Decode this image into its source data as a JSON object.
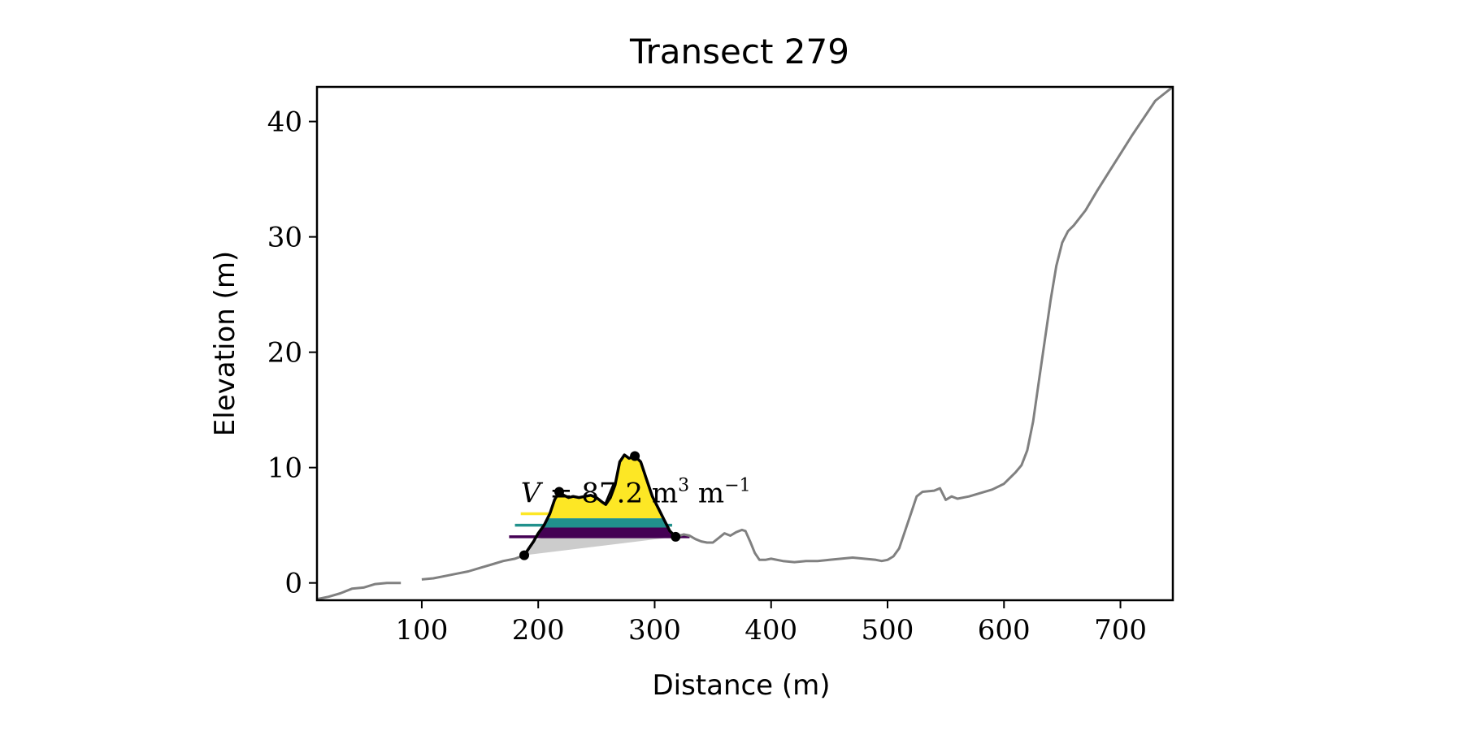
{
  "chart_data": {
    "type": "line",
    "title": "Transect 279",
    "xlabel": "Distance (m)",
    "ylabel": "Elevation (m)",
    "xlim": [
      10,
      745
    ],
    "ylim": [
      -1.5,
      43
    ],
    "xticks": [
      100,
      200,
      300,
      400,
      500,
      600,
      700
    ],
    "yticks": [
      0,
      10,
      20,
      30,
      40
    ],
    "grid": false,
    "legend": "none",
    "colors": {
      "profile": "#808080",
      "dune": "#000000",
      "fill_yellow": "#fde725",
      "fill_green": "#21918c",
      "fill_purple": "#440154",
      "fill_gray": "#cccccc"
    },
    "annotation": {
      "text_italic": "V",
      "text_middle": " = 87.2 m",
      "sup1": "3",
      "text_unit2": " m",
      "sup2": "−1",
      "x": 185,
      "y": 7.0
    },
    "profile_segments": [
      [
        [
          10,
          -1.4
        ],
        [
          20,
          -1.2
        ],
        [
          30,
          -0.9
        ],
        [
          40,
          -0.5
        ],
        [
          50,
          -0.4
        ],
        [
          60,
          -0.1
        ],
        [
          70,
          0.0
        ],
        [
          75,
          0.0
        ],
        [
          82,
          0.0
        ]
      ],
      [
        [
          100,
          0.3
        ],
        [
          110,
          0.4
        ],
        [
          120,
          0.6
        ],
        [
          130,
          0.8
        ],
        [
          140,
          1.0
        ],
        [
          150,
          1.3
        ],
        [
          160,
          1.6
        ],
        [
          170,
          1.9
        ],
        [
          180,
          2.1
        ],
        [
          188,
          2.4
        ]
      ],
      [
        [
          318,
          4.0
        ],
        [
          325,
          4.2
        ],
        [
          330,
          4.1
        ],
        [
          335,
          3.8
        ],
        [
          340,
          3.6
        ],
        [
          345,
          3.5
        ],
        [
          350,
          3.5
        ],
        [
          355,
          3.9
        ],
        [
          360,
          4.3
        ],
        [
          365,
          4.1
        ],
        [
          370,
          4.4
        ],
        [
          375,
          4.6
        ],
        [
          378,
          4.5
        ],
        [
          382,
          3.6
        ],
        [
          386,
          2.6
        ],
        [
          390,
          2.0
        ],
        [
          395,
          2.0
        ],
        [
          400,
          2.1
        ],
        [
          410,
          1.9
        ],
        [
          420,
          1.8
        ],
        [
          430,
          1.9
        ],
        [
          440,
          1.9
        ],
        [
          450,
          2.0
        ],
        [
          460,
          2.1
        ],
        [
          470,
          2.2
        ],
        [
          480,
          2.1
        ],
        [
          490,
          2.0
        ],
        [
          495,
          1.9
        ],
        [
          500,
          2.0
        ],
        [
          505,
          2.3
        ],
        [
          510,
          3.0
        ],
        [
          515,
          4.5
        ],
        [
          520,
          6.0
        ],
        [
          525,
          7.5
        ],
        [
          530,
          7.9
        ],
        [
          540,
          8.0
        ],
        [
          545,
          8.2
        ],
        [
          550,
          7.2
        ],
        [
          555,
          7.5
        ],
        [
          560,
          7.3
        ],
        [
          570,
          7.5
        ],
        [
          580,
          7.8
        ],
        [
          590,
          8.1
        ],
        [
          600,
          8.6
        ],
        [
          610,
          9.6
        ],
        [
          615,
          10.2
        ],
        [
          620,
          11.5
        ],
        [
          625,
          14.0
        ],
        [
          630,
          17.5
        ],
        [
          635,
          21.0
        ],
        [
          640,
          24.5
        ],
        [
          645,
          27.5
        ],
        [
          650,
          29.5
        ],
        [
          655,
          30.5
        ],
        [
          660,
          31.0
        ],
        [
          670,
          32.3
        ],
        [
          680,
          34.0
        ],
        [
          690,
          35.6
        ],
        [
          700,
          37.2
        ],
        [
          710,
          38.8
        ],
        [
          720,
          40.3
        ],
        [
          730,
          41.8
        ],
        [
          745,
          43.0
        ]
      ]
    ],
    "dune_profile": [
      [
        188,
        2.4
      ],
      [
        192,
        3.0
      ],
      [
        196,
        3.6
      ],
      [
        200,
        4.3
      ],
      [
        205,
        5.0
      ],
      [
        210,
        6.0
      ],
      [
        214,
        7.2
      ],
      [
        218,
        7.9
      ],
      [
        222,
        7.6
      ],
      [
        226,
        7.4
      ],
      [
        230,
        7.5
      ],
      [
        235,
        7.4
      ],
      [
        240,
        7.5
      ],
      [
        245,
        7.6
      ],
      [
        250,
        7.4
      ],
      [
        255,
        7.0
      ],
      [
        258,
        6.8
      ],
      [
        262,
        7.4
      ],
      [
        266,
        8.5
      ],
      [
        270,
        10.5
      ],
      [
        274,
        11.1
      ],
      [
        278,
        10.8
      ],
      [
        283,
        11.0
      ],
      [
        288,
        10.5
      ],
      [
        293,
        9.0
      ],
      [
        298,
        7.5
      ],
      [
        303,
        6.5
      ],
      [
        308,
        5.5
      ],
      [
        313,
        4.5
      ],
      [
        318,
        4.0
      ]
    ],
    "dune_points": [
      [
        188,
        2.4
      ],
      [
        218,
        7.9
      ],
      [
        283,
        11.0
      ],
      [
        318,
        4.0
      ]
    ],
    "level_lines": [
      {
        "color": "#fde725",
        "x": [
          185,
          230
        ],
        "y": 6.0
      },
      {
        "color": "#21918c",
        "x": [
          180,
          315
        ],
        "y": 5.0
      },
      {
        "color": "#440154",
        "x": [
          175,
          330
        ],
        "y": 4.0
      }
    ],
    "band_fills": [
      {
        "color": "#fde725",
        "y_low": 5.6
      },
      {
        "color": "#21918c",
        "y_low": 4.8,
        "y_high": 5.6
      },
      {
        "color": "#440154",
        "y_low": 4.0,
        "y_high": 4.8
      }
    ],
    "gray_wedge": [
      [
        188,
        2.4
      ],
      [
        318,
        4.0
      ]
    ]
  }
}
